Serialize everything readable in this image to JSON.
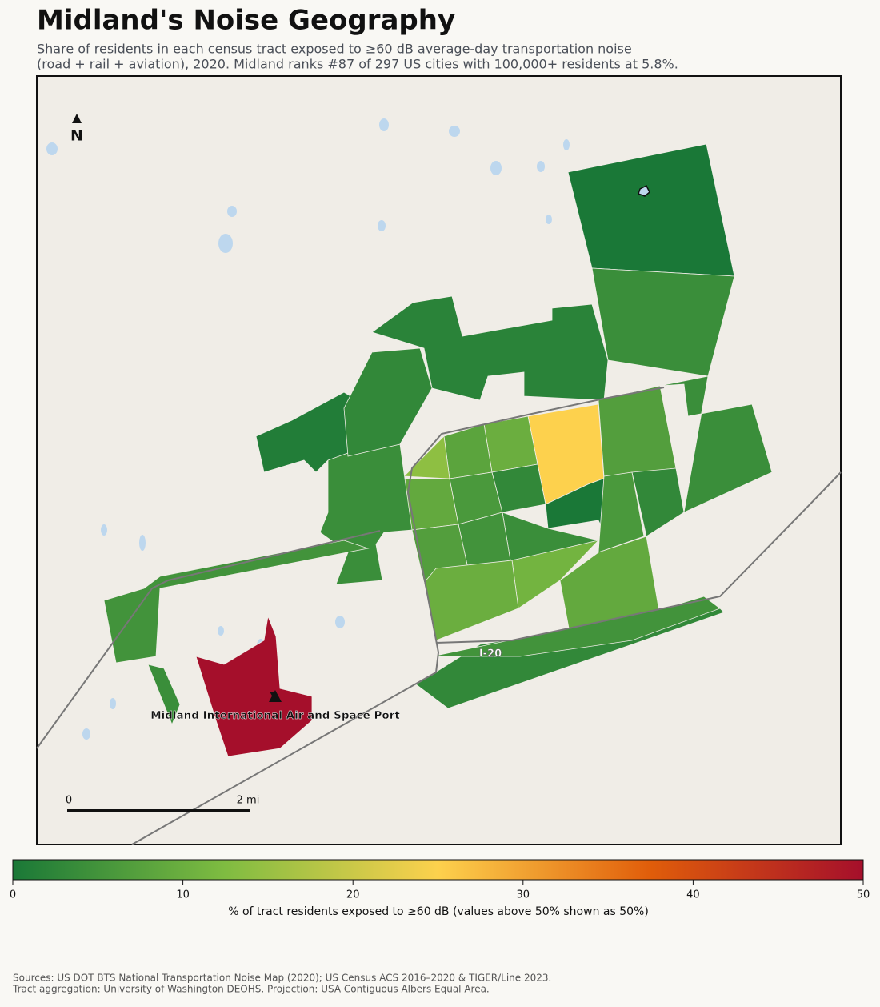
{
  "map": {
    "title": "Midland's Noise Geography",
    "subtitle": [
      "Share of residents in each census tract exposed to ≥60 dB average-day transportation noise",
      "(road + rail + aviation), 2020. Midland ranks #87 of 297 US cities with 100,000+ residents at 5.8%."
    ],
    "north": "N",
    "scale_labels": [
      "0",
      "2 mi"
    ],
    "road_label": "I-20",
    "airport_label": "Midland International Air and Space Port",
    "tracts": [
      0,
      4,
      2,
      4,
      7,
      25,
      10,
      8,
      14,
      9,
      6,
      3,
      0,
      4,
      5,
      7,
      6,
      3,
      11,
      10,
      9,
      4,
      1,
      5,
      3,
      3,
      5,
      50,
      4
    ],
    "colorbar": {
      "label": "% of tract residents exposed to ≥60 dB (values above 50% shown as 50%)",
      "lim": [
        0,
        50
      ],
      "ticks": [
        0,
        10,
        20,
        30,
        40,
        50
      ],
      "colors": [
        "#1a7837",
        "#7fbc41",
        "#fdd14d",
        "#e05d0a",
        "#a50f2b"
      ]
    },
    "sources": [
      "Sources: US DOT BTS National Transportation Noise Map (2020); US Census ACS 2016–2020 & TIGER/Line 2023.",
      "Tract aggregation: University of Washington DEOHS. Projection: USA Contiguous Albers Equal Area."
    ]
  }
}
